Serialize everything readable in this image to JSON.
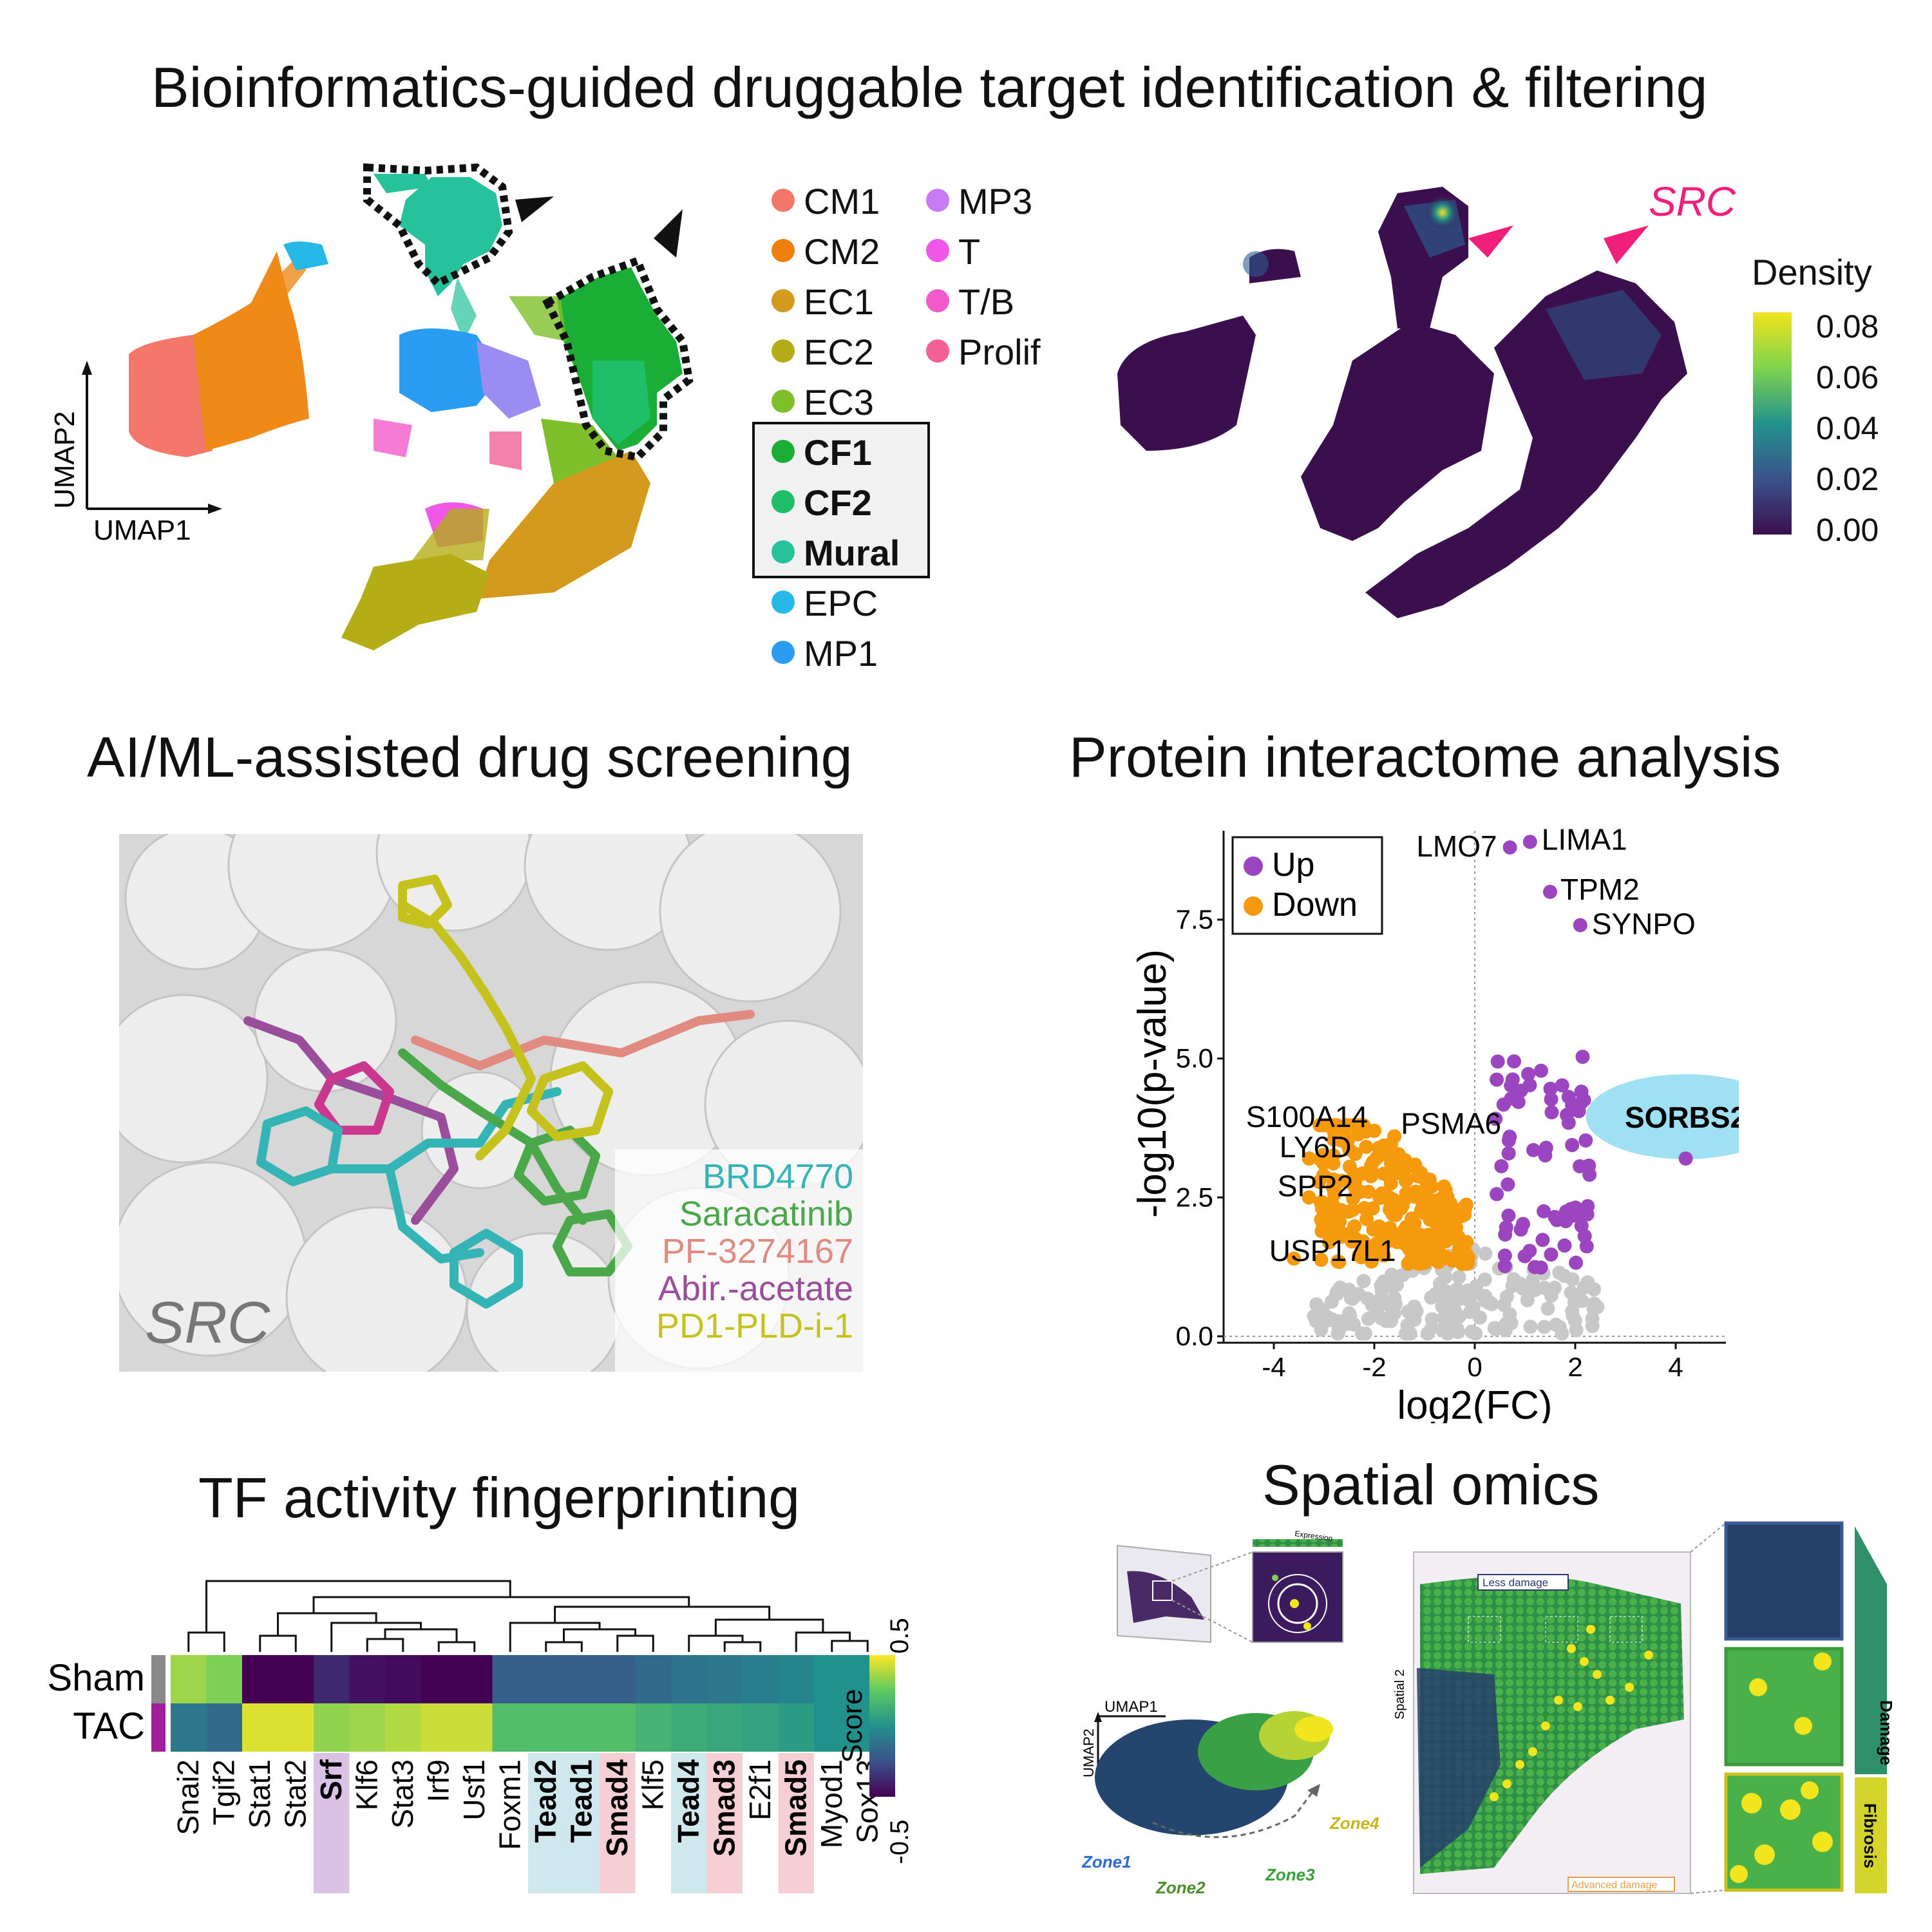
{
  "titles": {
    "t1": "Bioinformatics-guided druggable target identification & filtering",
    "t2": "AI/ML-assisted drug screening",
    "t3": "Protein interactome analysis",
    "t4": "TF activity fingerprinting",
    "t5": "Spatial omics"
  },
  "umap": {
    "axis_y": "UMAP2",
    "axis_x": "UMAP1",
    "legend_col1": [
      {
        "label": "CM1",
        "color": "#f4776b",
        "bold": false
      },
      {
        "label": "CM2",
        "color": "#ef7f0c",
        "bold": false
      },
      {
        "label": "EC1",
        "color": "#d39a1e",
        "bold": false
      },
      {
        "label": "EC2",
        "color": "#b5ad18",
        "bold": false
      },
      {
        "label": "EC3",
        "color": "#7fbf2b",
        "bold": false
      },
      {
        "label": "CF1",
        "color": "#1aae36",
        "bold": true
      },
      {
        "label": "CF2",
        "color": "#1fbf6a",
        "bold": true
      },
      {
        "label": "Mural",
        "color": "#25c29b",
        "bold": true
      },
      {
        "label": "EPC",
        "color": "#26b8e6",
        "bold": false
      },
      {
        "label": "MP1",
        "color": "#2a9cf2",
        "bold": false
      }
    ],
    "legend_col2": [
      {
        "label": "MP3",
        "color": "#c77cf5",
        "bold": false
      },
      {
        "label": "T",
        "color": "#f157e6",
        "bold": false
      },
      {
        "label": "T/B",
        "color": "#f45ac9",
        "bold": false
      },
      {
        "label": "Prolif",
        "color": "#f26095",
        "bold": false
      }
    ]
  },
  "density": {
    "gene": "SRC",
    "legend_title": "Density",
    "ticks": [
      "0.08",
      "0.06",
      "0.04",
      "0.02",
      "0.00"
    ],
    "colors": {
      "low": "#3b0f4e",
      "high": "#f2e41d"
    }
  },
  "docking": {
    "protein": "SRC",
    "ligands": [
      {
        "name": "BRD4770",
        "color": "#34b4b4"
      },
      {
        "name": "Saracatinib",
        "color": "#4aa84a"
      },
      {
        "name": "PF-3274167",
        "color": "#e08a80"
      },
      {
        "name": "Abir.-acetate",
        "color": "#9a4d9a"
      },
      {
        "name": "PD1-PLD-i-1",
        "color": "#c5c21d"
      }
    ]
  },
  "chart_data": {
    "type": "scatter",
    "xlabel": "log2(FC)",
    "ylabel": "-log10(p-value)",
    "xlim": [
      -5,
      5
    ],
    "ylim": [
      0,
      9.1
    ],
    "xticks": [
      "-4",
      "-2",
      "0",
      "2",
      "4"
    ],
    "yticks": [
      "0.0",
      "2.5",
      "5.0",
      "7.5"
    ],
    "legend": [
      {
        "name": "Up",
        "color": "#9b45c0"
      },
      {
        "name": "Down",
        "color": "#f59a0c"
      }
    ],
    "labeled_points": [
      {
        "label": "LMO7",
        "x": 0.7,
        "y": 8.8,
        "group": "Up"
      },
      {
        "label": "LIMA1",
        "x": 1.1,
        "y": 8.9,
        "group": "Up"
      },
      {
        "label": "TPM2",
        "x": 1.5,
        "y": 8.0,
        "group": "Up"
      },
      {
        "label": "SYNPO",
        "x": 2.1,
        "y": 7.4,
        "group": "Up"
      },
      {
        "label": "SORBS2",
        "x": 4.2,
        "y": 3.2,
        "group": "Up"
      },
      {
        "label": "S100A14",
        "x": -2.0,
        "y": 3.7,
        "group": "Down"
      },
      {
        "label": "PSMA6",
        "x": -1.6,
        "y": 3.6,
        "group": "Down"
      },
      {
        "label": "LY6D",
        "x": -3.3,
        "y": 3.2,
        "group": "Down"
      },
      {
        "label": "SPP2",
        "x": -3.3,
        "y": 2.5,
        "group": "Down"
      },
      {
        "label": "USP17L1",
        "x": -3.6,
        "y": 1.4,
        "group": "Down"
      }
    ]
  },
  "heatmap": {
    "rows": [
      "Sham",
      "TAC"
    ],
    "row_colors": [
      "#8a8a8a",
      "#a0209a"
    ],
    "columns": [
      {
        "label": "Snai2",
        "bold": false,
        "hl": ""
      },
      {
        "label": "Tgif2",
        "bold": false,
        "hl": ""
      },
      {
        "label": "Stat1",
        "bold": false,
        "hl": ""
      },
      {
        "label": "Stat2",
        "bold": false,
        "hl": ""
      },
      {
        "label": "Srf",
        "bold": true,
        "hl": "#d9c2e6"
      },
      {
        "label": "Klf6",
        "bold": false,
        "hl": ""
      },
      {
        "label": "Stat3",
        "bold": false,
        "hl": ""
      },
      {
        "label": "Irf9",
        "bold": false,
        "hl": ""
      },
      {
        "label": "Usf1",
        "bold": false,
        "hl": ""
      },
      {
        "label": "Foxm1",
        "bold": false,
        "hl": ""
      },
      {
        "label": "Tead2",
        "bold": true,
        "hl": "#cfe8ee"
      },
      {
        "label": "Tead1",
        "bold": true,
        "hl": "#cfe8ee"
      },
      {
        "label": "Smad4",
        "bold": true,
        "hl": "#f6cfd5"
      },
      {
        "label": "Klf5",
        "bold": false,
        "hl": ""
      },
      {
        "label": "Tead4",
        "bold": true,
        "hl": "#cfe8ee"
      },
      {
        "label": "Smad3",
        "bold": true,
        "hl": "#f6cfd5"
      },
      {
        "label": "E2f1",
        "bold": false,
        "hl": ""
      },
      {
        "label": "Smad5",
        "bold": true,
        "hl": "#f6cfd5"
      },
      {
        "label": "Myod1",
        "bold": false,
        "hl": ""
      },
      {
        "label": "Sox13",
        "bold": false,
        "hl": ""
      }
    ],
    "sham_values": [
      0.35,
      0.3,
      -0.5,
      -0.5,
      -0.38,
      -0.45,
      -0.47,
      -0.5,
      -0.5,
      -0.2,
      -0.2,
      -0.2,
      -0.2,
      -0.15,
      -0.12,
      -0.1,
      -0.08,
      -0.05,
      0.0,
      0.0
    ],
    "tac_values": [
      -0.1,
      -0.15,
      0.45,
      0.45,
      0.33,
      0.35,
      0.38,
      0.42,
      0.42,
      0.2,
      0.2,
      0.2,
      0.2,
      0.15,
      0.12,
      0.1,
      0.08,
      0.05,
      0.0,
      0.0
    ],
    "scale_label": "Score",
    "scale_max": "0.5",
    "scale_min": "-0.5"
  },
  "spatial": {
    "umap_y": "UMAP2",
    "umap_x": "UMAP1",
    "zones": [
      {
        "label": "Zone1",
        "color": "#2a6bd4"
      },
      {
        "label": "Zone2",
        "color": "#4a8f2a"
      },
      {
        "label": "Zone3",
        "color": "#3aa03a"
      },
      {
        "label": "Zone4",
        "color": "#c9b51c"
      }
    ],
    "expression_label": "Expression",
    "spatial_axis": "Spatial 2",
    "less_damage": "Less damage",
    "advanced_damage": "Advanced damage",
    "damage": "Damage",
    "fibrosis": "Fibrosis"
  }
}
